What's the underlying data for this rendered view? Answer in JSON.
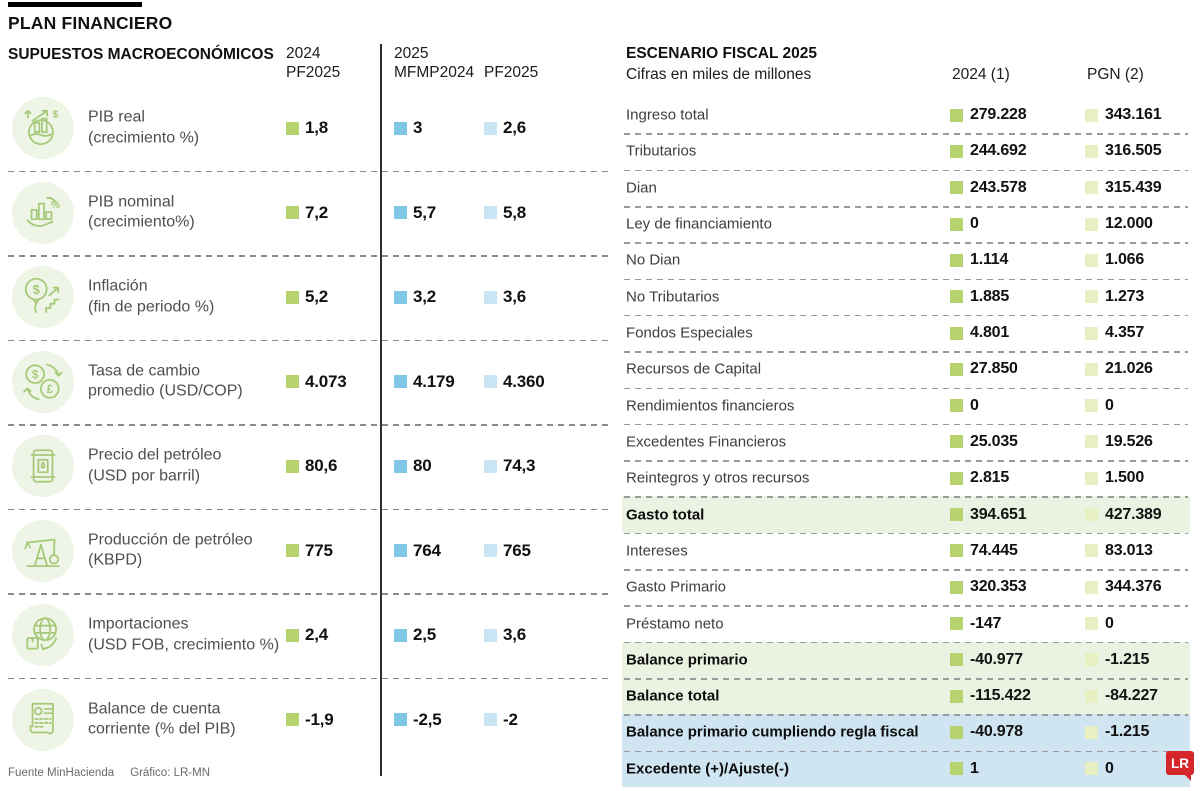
{
  "page_title": "PLAN FINANCIERO",
  "colors": {
    "green": "#b6d36f",
    "pale_green": "#e8efc2",
    "blue": "#80c7e5",
    "light_blue": "#c9e5f3",
    "hl_green": "#eaf2e1",
    "hl_blue": "#cfe5f2",
    "icon_stroke": "#a6c979",
    "icon_bg": "#eef5e6",
    "red": "#d5272b",
    "label_gray": "#4f4f4f"
  },
  "chart_data": [
    {
      "type": "table",
      "title": "SUPUESTOS MACROECONÓMICOS",
      "columns": [
        "2024 PF2025",
        "2025 MFMP2024",
        "2025 PF2025"
      ],
      "col_headers": {
        "c1l1": "2024",
        "c1l2": "PF2025",
        "c2l1": "2025",
        "c2l2": "MFMP2024",
        "c3l2": "PF2025"
      },
      "rows": [
        {
          "icon": "globe-growth-icon",
          "label": "PIB real",
          "sublabel": "(crecimiento %)",
          "values": [
            "1,8",
            "3",
            "2,6"
          ]
        },
        {
          "icon": "hand-chart-icon",
          "label": "PIB nominal",
          "sublabel": "(crecimiento%)",
          "values": [
            "7,2",
            "5,7",
            "5,8"
          ]
        },
        {
          "icon": "inflation-balloon-icon",
          "label": "Inflación",
          "sublabel": "(fin de periodo %)",
          "values": [
            "5,2",
            "3,2",
            "3,6"
          ]
        },
        {
          "icon": "currency-exchange-icon",
          "label": "Tasa de cambio",
          "sublabel": "promedio (USD/COP)",
          "values": [
            "4.073",
            "4.179",
            "4.360"
          ]
        },
        {
          "icon": "oil-barrel-icon",
          "label": "Precio del petróleo",
          "sublabel": "(USD por barril)",
          "values": [
            "80,6",
            "80",
            "74,3"
          ]
        },
        {
          "icon": "oil-pump-icon",
          "label": "Producción de petróleo",
          "sublabel": "(KBPD)",
          "values": [
            "775",
            "764",
            "765"
          ]
        },
        {
          "icon": "imports-globe-icon",
          "label": "Importaciones",
          "sublabel": "(USD FOB, crecimiento %)",
          "values": [
            "2,4",
            "2,5",
            "3,6"
          ]
        },
        {
          "icon": "statement-dollar-icon",
          "label": "Balance de cuenta",
          "sublabel": "corriente (% del PIB)",
          "values": [
            "-1,9",
            "-2,5",
            "-2"
          ]
        }
      ]
    },
    {
      "type": "table",
      "title": "ESCENARIO FISCAL 2025",
      "subtitle": "Cifras en miles de millones",
      "columns": [
        "2024 (1)",
        "PGN (2)"
      ],
      "rows": [
        {
          "label": "Ingreso total",
          "values": [
            "279.228",
            "343.161"
          ],
          "bold": false,
          "highlight": "none"
        },
        {
          "label": "Tributarios",
          "values": [
            "244.692",
            "316.505"
          ],
          "bold": false,
          "highlight": "none"
        },
        {
          "label": "Dian",
          "values": [
            "243.578",
            "315.439"
          ],
          "bold": false,
          "highlight": "none"
        },
        {
          "label": "Ley de financiamiento",
          "values": [
            "0",
            "12.000"
          ],
          "bold": false,
          "highlight": "none"
        },
        {
          "label": "No Dian",
          "values": [
            "1.114",
            "1.066"
          ],
          "bold": false,
          "highlight": "none"
        },
        {
          "label": "No Tributarios",
          "values": [
            "1.885",
            "1.273"
          ],
          "bold": false,
          "highlight": "none"
        },
        {
          "label": "Fondos Especiales",
          "values": [
            "4.801",
            "4.357"
          ],
          "bold": false,
          "highlight": "none"
        },
        {
          "label": "Recursos de Capital",
          "values": [
            "27.850",
            "21.026"
          ],
          "bold": false,
          "highlight": "none"
        },
        {
          "label": "Rendimientos financieros",
          "values": [
            "0",
            "0"
          ],
          "bold": false,
          "highlight": "none"
        },
        {
          "label": "Excedentes Financieros",
          "values": [
            "25.035",
            "19.526"
          ],
          "bold": false,
          "highlight": "none"
        },
        {
          "label": "Reintegros y otros recursos",
          "values": [
            "2.815",
            "1.500"
          ],
          "bold": false,
          "highlight": "none"
        },
        {
          "label": "Gasto total",
          "values": [
            "394.651",
            "427.389"
          ],
          "bold": true,
          "highlight": "green"
        },
        {
          "label": "Intereses",
          "values": [
            "74.445",
            "83.013"
          ],
          "bold": false,
          "highlight": "none"
        },
        {
          "label": "Gasto Primario",
          "values": [
            "320.353",
            "344.376"
          ],
          "bold": false,
          "highlight": "none"
        },
        {
          "label": "Préstamo neto",
          "values": [
            "-147",
            "0"
          ],
          "bold": false,
          "highlight": "none"
        },
        {
          "label": "Balance primario",
          "values": [
            "-40.977",
            "-1.215"
          ],
          "bold": true,
          "highlight": "green"
        },
        {
          "label": "Balance total",
          "values": [
            "-115.422",
            "-84.227"
          ],
          "bold": true,
          "highlight": "green"
        },
        {
          "label": "Balance primario cumpliendo regla fiscal",
          "values": [
            "-40.978",
            "-1.215"
          ],
          "bold": true,
          "highlight": "blue"
        },
        {
          "label": "Excedente (+)/Ajuste(-)",
          "values": [
            "1",
            "0"
          ],
          "bold": true,
          "highlight": "blue"
        }
      ]
    }
  ],
  "footer": {
    "source": "Fuente MinHacienda",
    "credit": "Gráfico: LR-MN"
  },
  "logo_text": "LR"
}
